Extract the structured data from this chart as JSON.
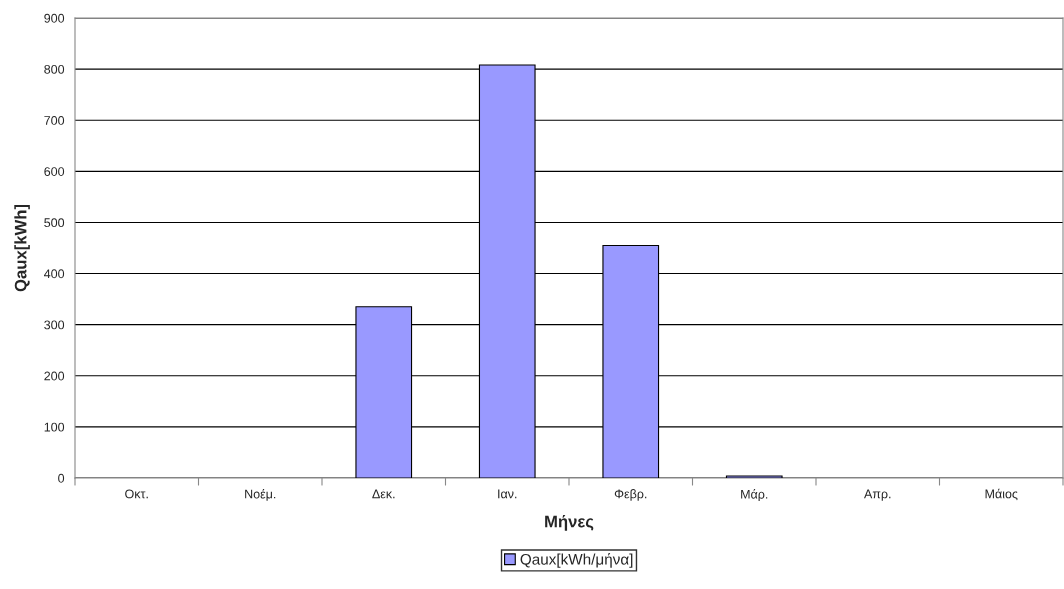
{
  "chart_data": {
    "type": "bar",
    "xlabel": "Μήνες",
    "ylabel": "Qaux[kWh]",
    "categories": [
      "Οκτ.",
      "Νοέμ.",
      "Δεκ.",
      "Ιαν.",
      "Φεβρ.",
      "Μάρ.",
      "Απρ.",
      "Μάιος"
    ],
    "series": [
      {
        "name": "Qaux[kWh/μήνα]",
        "color": "#9999ff",
        "values": [
          null,
          null,
          335,
          808,
          455,
          4,
          null,
          null
        ]
      }
    ],
    "ylim": [
      0,
      900
    ],
    "yticks": [
      0,
      100,
      200,
      300,
      400,
      500,
      600,
      700,
      800,
      900
    ],
    "grid": "y",
    "legend": "bottom"
  }
}
